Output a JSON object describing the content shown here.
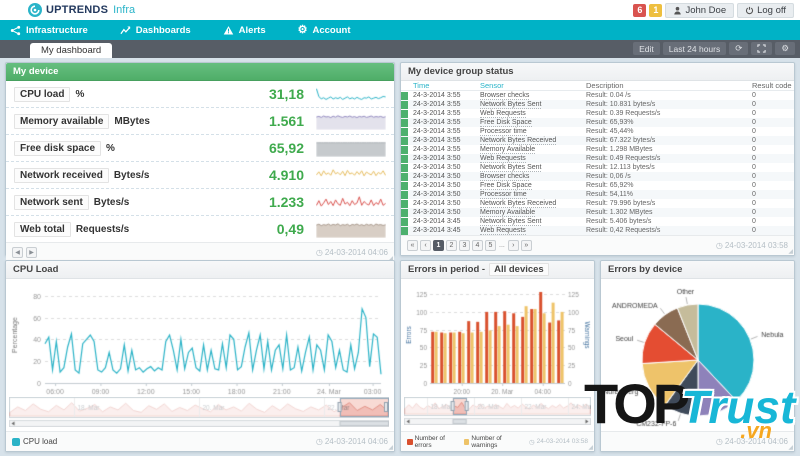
{
  "app": {
    "brand": "UPTRENDS",
    "brand_suffix": "Infra",
    "alert_badges": [
      {
        "text": "6",
        "color": "#d9534f"
      },
      {
        "text": "1",
        "color": "#eebf3f"
      }
    ],
    "user_button": "John Doe",
    "logoff_button": "Log off"
  },
  "nav": {
    "items": [
      {
        "label": "Infrastructure",
        "icon": "infrastructure-icon"
      },
      {
        "label": "Dashboards",
        "icon": "dashboards-icon"
      },
      {
        "label": "Alerts",
        "icon": "alerts-icon"
      },
      {
        "label": "Account",
        "icon": "account-icon"
      }
    ]
  },
  "tabbar": {
    "active_tab": "My dashboard",
    "edit_button": "Edit",
    "range_button": "Last 24 hours"
  },
  "icons": {
    "clock": "◷",
    "refresh": "⟳",
    "gear": "⚙",
    "prev": "◀",
    "next": "▶",
    "grip": "◢"
  },
  "device_panel": {
    "title": "My device",
    "metrics": [
      {
        "name": "CPU load",
        "unit": "%",
        "value": "31,18",
        "color": "#2bb3c7",
        "fill": null,
        "values": [
          62,
          25,
          15,
          20,
          12,
          18,
          24,
          14,
          20,
          16,
          22,
          12,
          18,
          24,
          15,
          20,
          14,
          22,
          16,
          12,
          20,
          18,
          24,
          14,
          18,
          22,
          16,
          20,
          26,
          24
        ]
      },
      {
        "name": "Memory available",
        "unit": "MBytes",
        "value": "1.561",
        "color": "#938ac0",
        "fill": "#e3e2ec",
        "values": [
          60,
          63,
          58,
          65,
          60,
          62,
          57,
          64,
          59,
          66,
          61,
          58,
          63,
          60,
          65,
          59,
          62,
          57,
          63,
          60,
          64,
          58,
          61,
          65,
          59,
          62,
          60,
          63,
          58,
          61
        ]
      },
      {
        "name": "Free disk space",
        "unit": "%",
        "value": "65,92",
        "color": "#aab0b5",
        "fill": "#c6cacd",
        "values": [
          66,
          66,
          66,
          66,
          66,
          66,
          66,
          66,
          66,
          66,
          66,
          66,
          66,
          66,
          66,
          66,
          66,
          66,
          66,
          66,
          66,
          66,
          66,
          66,
          66,
          66,
          66,
          66,
          66,
          66
        ]
      },
      {
        "name": "Network received",
        "unit": "Bytes/s",
        "value": "4.910",
        "color": "#e6bd60",
        "fill": null,
        "values": [
          40,
          55,
          35,
          60,
          42,
          50,
          38,
          65,
          45,
          52,
          40,
          58,
          36,
          62,
          44,
          50,
          38,
          56,
          42,
          60,
          35,
          54,
          46,
          40,
          58,
          36,
          52,
          44,
          60,
          38
        ]
      },
      {
        "name": "Network sent",
        "unit": "Bytes/s",
        "value": "1.233",
        "color": "#d9534f",
        "fill": null,
        "values": [
          30,
          60,
          25,
          45,
          70,
          35,
          55,
          28,
          65,
          40,
          30,
          75,
          38,
          50,
          28,
          60,
          35,
          45,
          85,
          30,
          55,
          40,
          32,
          65,
          28,
          48,
          36,
          70,
          30,
          42
        ]
      },
      {
        "name": "Web total",
        "unit": "Requests/s",
        "value": "0,49",
        "color": "#a9998c",
        "fill": "#d8cec5",
        "values": [
          58,
          62,
          55,
          60,
          57,
          63,
          56,
          61,
          58,
          64,
          55,
          60,
          57,
          62,
          54,
          61,
          58,
          63,
          56,
          60,
          55,
          62,
          57,
          61,
          54,
          63,
          58,
          60,
          56,
          59
        ]
      }
    ],
    "timestamp": "24-03-2014 04:06"
  },
  "group_panel": {
    "title": "My device group status",
    "columns": [
      "Time",
      "Sensor",
      "Description",
      "Result code"
    ],
    "status_color": "#4db06e",
    "rows": [
      [
        "24-3-2014 3:55",
        "Browser checks",
        "Result: 0.04 /s",
        "0"
      ],
      [
        "24-3-2014 3:55",
        "Network Bytes Sent",
        "Result: 10.831 bytes/s",
        "0"
      ],
      [
        "24-3-2014 3:55",
        "Web Requests",
        "Result: 0.39 Requests/s",
        "0"
      ],
      [
        "24-3-2014 3:55",
        "Free Disk Space",
        "Result: 65,93%",
        "0"
      ],
      [
        "24-3-2014 3:55",
        "Processor time",
        "Result: 45,44%",
        "0"
      ],
      [
        "24-3-2014 3:55",
        "Network Bytes Received",
        "Result: 67.322 bytes/s",
        "0"
      ],
      [
        "24-3-2014 3:55",
        "Memory Available",
        "Result: 1.298 MBytes",
        "0"
      ],
      [
        "24-3-2014 3:50",
        "Web Requests",
        "Result: 0.49 Requests/s",
        "0"
      ],
      [
        "24-3-2014 3:50",
        "Network Bytes Sent",
        "Result: 12.113 bytes/s",
        "0"
      ],
      [
        "24-3-2014 3:50",
        "Browser checks",
        "Result: 0,06 /s",
        "0"
      ],
      [
        "24-3-2014 3:50",
        "Free Disk Space",
        "Result: 65,92%",
        "0"
      ],
      [
        "24-3-2014 3:50",
        "Processor time",
        "Result: 54,11%",
        "0"
      ],
      [
        "24-3-2014 3:50",
        "Network Bytes Received",
        "Result: 79.996 bytes/s",
        "0"
      ],
      [
        "24-3-2014 3:50",
        "Memory Available",
        "Result: 1.302 MBytes",
        "0"
      ],
      [
        "24-3-2014 3:45",
        "Network Bytes Sent",
        "Result: 5.406 bytes/s",
        "0"
      ],
      [
        "24-3-2014 3:45",
        "Web Requests",
        "Result: 0,42 Requests/s",
        "0"
      ]
    ],
    "pagination": {
      "first": "«",
      "prev": "‹",
      "pages": [
        "1",
        "2",
        "3",
        "4",
        "5"
      ],
      "active": "1",
      "ellipsis": "...",
      "next": "›",
      "last": "»"
    },
    "timestamp": "24-03-2014 03:58"
  },
  "chart_data": [
    {
      "id": "cpu_load",
      "type": "line",
      "title": "CPU Load",
      "ylabel": "Percentage",
      "ylim": [
        0,
        88
      ],
      "yticks": [
        0,
        20,
        40,
        60,
        80
      ],
      "xticklabels": [
        "06:00",
        "09:00",
        "12:00",
        "15:00",
        "18:00",
        "21:00",
        "24. Mar",
        "03:00"
      ],
      "xtickpos": [
        0.03,
        0.165,
        0.3,
        0.435,
        0.57,
        0.705,
        0.845,
        0.975
      ],
      "grid": true,
      "legend_position": "bottom",
      "series": [
        {
          "name": "CPU load",
          "color": "#2bb3c7",
          "values": [
            36,
            42,
            12,
            38,
            10,
            14,
            33,
            45,
            12,
            9,
            36,
            40,
            44,
            38,
            12,
            10,
            14,
            28,
            12,
            9,
            13,
            35,
            11,
            30,
            12,
            14,
            10,
            13,
            15,
            11,
            14,
            12,
            38,
            44,
            30,
            12,
            40,
            13,
            28,
            32,
            14,
            11,
            35,
            12,
            30,
            13,
            12,
            36,
            14,
            44,
            40,
            12,
            15,
            33,
            46,
            12,
            30,
            44,
            13,
            38,
            12,
            30,
            35,
            13,
            44,
            12,
            14,
            33,
            11,
            28,
            42,
            12,
            35,
            30,
            12,
            44,
            38,
            14,
            30,
            12,
            10,
            35,
            13,
            28,
            68,
            60,
            15,
            45,
            42,
            8
          ]
        }
      ],
      "navigator": {
        "labels": [
          "18. Mar",
          "20. Mar",
          "22. Mar"
        ],
        "labelpos": [
          0.17,
          0.5,
          0.83
        ],
        "selection": [
          0.87,
          1.0
        ],
        "values": [
          12,
          30,
          18,
          40,
          22,
          14,
          35,
          20,
          44,
          16,
          25,
          38,
          14,
          30,
          20,
          42,
          18,
          12,
          34,
          22,
          40,
          15,
          28,
          18,
          36,
          24,
          14,
          38,
          20,
          30,
          16,
          42,
          22,
          12,
          34,
          18,
          40,
          24,
          15,
          30,
          20,
          36,
          14,
          28,
          44,
          18,
          32,
          20,
          38,
          16
        ]
      },
      "timestamp": "24-03-2014 04:06"
    },
    {
      "id": "errors_in_period",
      "type": "bar",
      "title": "Errors in period -",
      "title_scope": "All devices",
      "ylabel_left": "Errors",
      "ylabel_right": "Warnings",
      "ylim": [
        0,
        135
      ],
      "yticks": [
        0,
        25,
        50,
        75,
        100,
        125
      ],
      "xticklabels": [
        "20:00",
        "20. Mar",
        "04:00"
      ],
      "xtickpos": [
        0.235,
        0.535,
        0.835
      ],
      "grid": true,
      "legend_position": "bottom",
      "series": [
        {
          "name": "Number of errors",
          "color": "#d9502e",
          "values": [
            72,
            71,
            71,
            72,
            87,
            86,
            100,
            100,
            101,
            98,
            93,
            104,
            128,
            85,
            88
          ]
        },
        {
          "name": "Number of warnings",
          "color": "#eec368",
          "values": [
            72,
            70,
            71,
            70,
            71,
            72,
            74,
            80,
            82,
            80,
            108,
            104,
            98,
            113,
            100
          ]
        }
      ],
      "navigator": {
        "labels": [
          "18. Mar",
          "20. Mar",
          "22. Mar",
          "24. Mar"
        ],
        "labelpos": [
          0.125,
          0.375,
          0.625,
          0.875
        ],
        "selection": [
          0.26,
          0.335
        ],
        "values": [
          20,
          35,
          22,
          40,
          25,
          18,
          32,
          24,
          42,
          20,
          28,
          36,
          22,
          30,
          25,
          44,
          20,
          18,
          34,
          26,
          38,
          22,
          30,
          24,
          36,
          28,
          20,
          40,
          24,
          32,
          22,
          38,
          26,
          18,
          34,
          24,
          40,
          28,
          20,
          32,
          24,
          36,
          22,
          30,
          42,
          24,
          34,
          26,
          38,
          22
        ]
      },
      "timestamp": "24-03-2014 03:58"
    },
    {
      "id": "errors_by_device",
      "type": "pie",
      "title": "Errors by device",
      "slices": [
        {
          "label": "Nebula",
          "value": 38,
          "color": "#2ab3c8"
        },
        {
          "label": "",
          "value": 12,
          "color": "#8e82ba"
        },
        {
          "label": "CM232-FP-6",
          "value": 10,
          "color": "#3f4a5a"
        },
        {
          "label": "Nuremberg",
          "value": 14,
          "color": "#eec36a"
        },
        {
          "label": "Seoul",
          "value": 12,
          "color": "#e44d32"
        },
        {
          "label": "ANDROMEDA",
          "value": 8,
          "color": "#8a6b52"
        },
        {
          "label": "Other",
          "value": 6,
          "color": "#c5bc9b"
        }
      ],
      "timestamp": "24-03-2014 04:06"
    }
  ],
  "watermark": {
    "line1": "TOP",
    "line2": "Trust",
    "line3": ".vn"
  }
}
